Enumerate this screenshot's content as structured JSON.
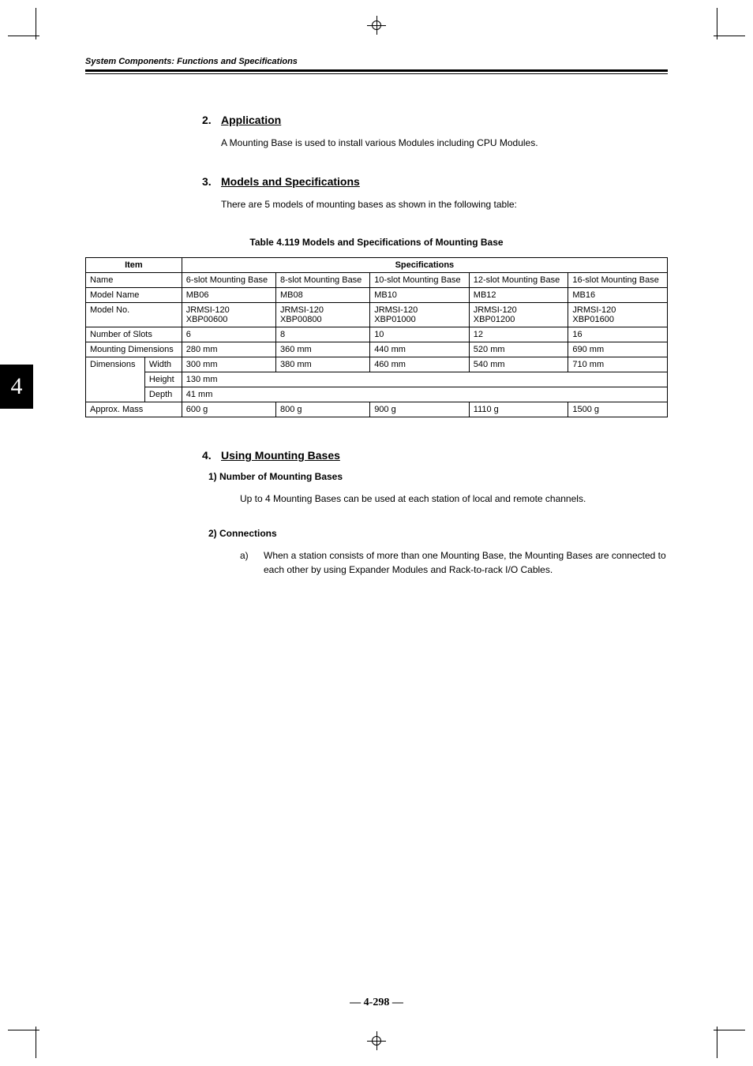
{
  "header": {
    "title": "System Components: Functions and Specifications"
  },
  "section_tab": "4",
  "sections": {
    "s2": {
      "num": "2.",
      "title": "Application",
      "body": "A Mounting Base is used to install various Modules including CPU Modules."
    },
    "s3": {
      "num": "3.",
      "title": "Models and Specifications",
      "body": "There are 5 models of mounting bases as shown in the following table:"
    },
    "s4": {
      "num": "4.",
      "title": "Using Mounting Bases",
      "sub1": {
        "title": "1) Number of Mounting Bases",
        "body": "Up to 4 Mounting Bases can be used at each station of local and remote channels."
      },
      "sub2": {
        "title": "2) Connections",
        "item_a_marker": "a)",
        "item_a_text": "When a station consists of more than one Mounting Base, the Mounting Bases are connected to each other by using Expander Modules and Rack-to-rack I/O Cables."
      }
    }
  },
  "table": {
    "caption": "Table 4.119 Models and Specifications of Mounting Base",
    "headers": {
      "item": "Item",
      "specs": "Specifications"
    },
    "rows": {
      "name": {
        "label": "Name",
        "c1": "6-slot Mounting Base",
        "c2": "8-slot Mounting Base",
        "c3": "10-slot Mounting Base",
        "c4": "12-slot Mounting Base",
        "c5": "16-slot Mounting Base"
      },
      "model_name": {
        "label": "Model Name",
        "c1": "MB06",
        "c2": "MB08",
        "c3": "MB10",
        "c4": "MB12",
        "c5": "MB16"
      },
      "model_no": {
        "label": "Model No.",
        "c1a": "JRMSI-120",
        "c1b": "XBP00600",
        "c2a": "JRMSI-120",
        "c2b": "XBP00800",
        "c3a": "JRMSI-120",
        "c3b": "XBP01000",
        "c4a": "JRMSI-120",
        "c4b": "XBP01200",
        "c5a": "JRMSI-120",
        "c5b": "XBP01600"
      },
      "slots": {
        "label": "Number of Slots",
        "c1": "6",
        "c2": "8",
        "c3": "10",
        "c4": "12",
        "c5": "16"
      },
      "mounting_dim": {
        "label": "Mounting Dimensions",
        "c1": "280 mm",
        "c2": "360 mm",
        "c3": "440 mm",
        "c4": "520 mm",
        "c5": "690 mm"
      },
      "dimensions": {
        "label": "Dimensions",
        "width_label": "Width",
        "width_c1": "300 mm",
        "width_c2": "380 mm",
        "width_c3": "460 mm",
        "width_c4": "540 mm",
        "width_c5": "710 mm",
        "height_label": "Height",
        "height_val": "130 mm",
        "depth_label": "Depth",
        "depth_val": "41 mm"
      },
      "mass": {
        "label": "Approx. Mass",
        "c1": "600 g",
        "c2": "800 g",
        "c3": "900 g",
        "c4": "1110 g",
        "c5": "1500 g"
      }
    }
  },
  "page_number": "— 4-298 —",
  "colors": {
    "text": "#000000",
    "background": "#ffffff",
    "tab_bg": "#000000",
    "tab_text": "#ffffff"
  },
  "fonts": {
    "body": "Arial",
    "page_num": "Times New Roman",
    "tab": "Times New Roman"
  }
}
